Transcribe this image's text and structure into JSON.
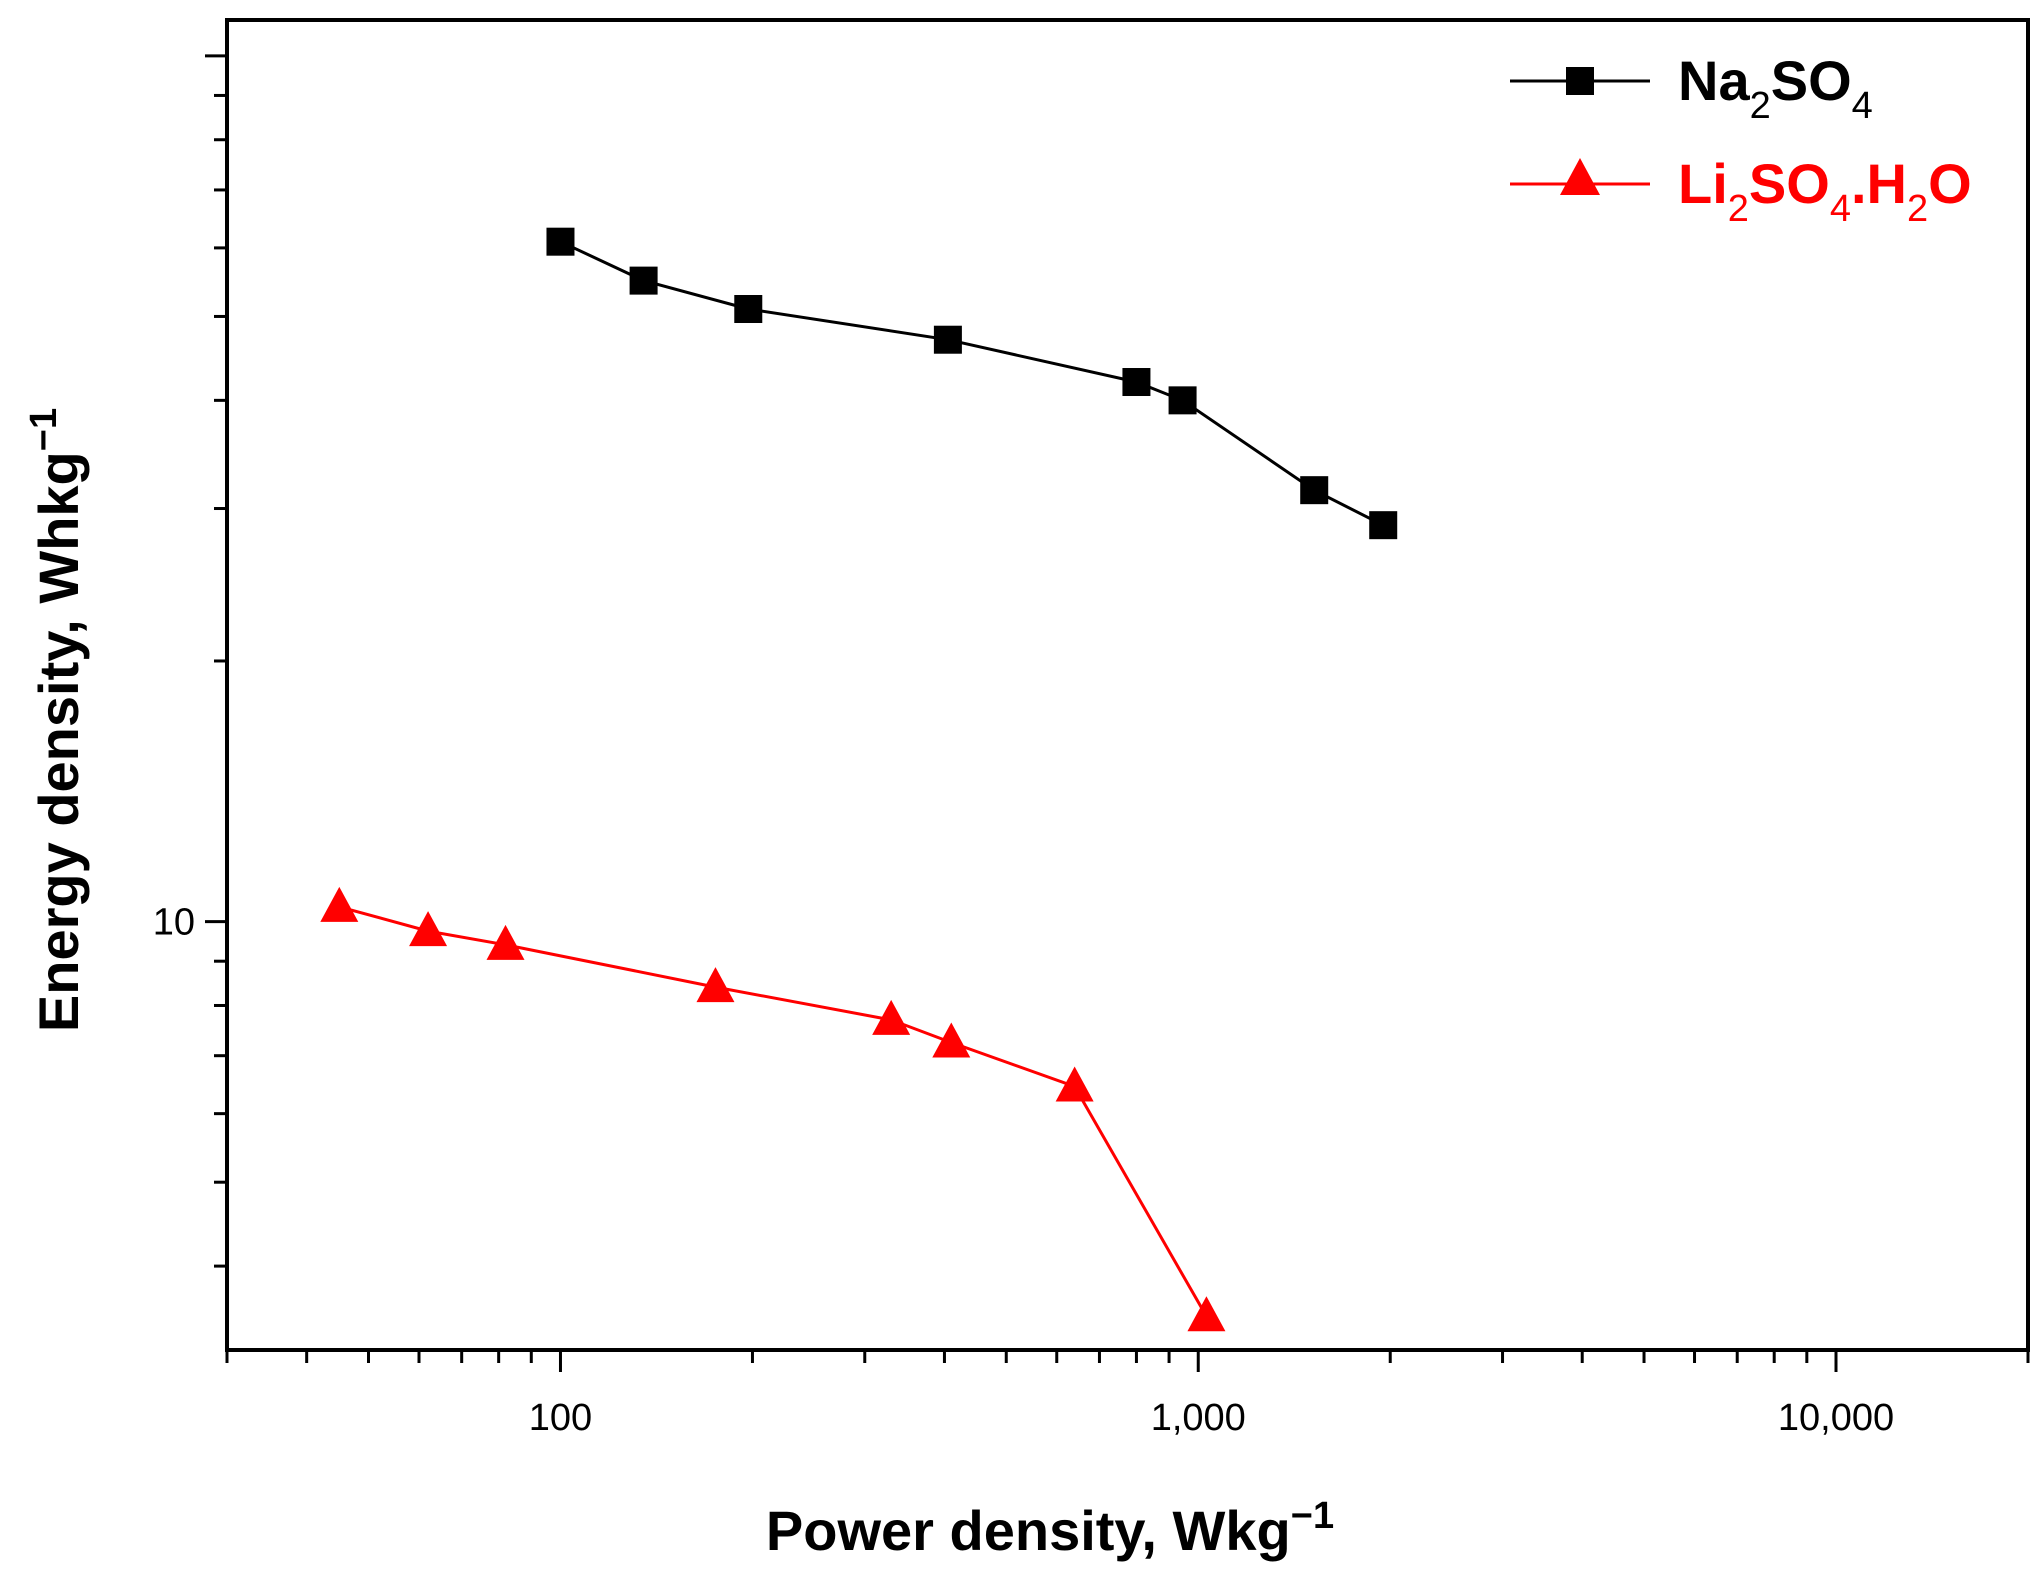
{
  "chart_data": {
    "type": "line",
    "xlabel": "Power density, Wkg",
    "xlabel_sup": "−1",
    "ylabel": "Energy density, Whkg",
    "ylabel_sup": "−1",
    "x_scale": "log",
    "y_scale": "log",
    "xlim": [
      30,
      20000
    ],
    "ylim": [
      3.2,
      110
    ],
    "x_tick_labels": [
      {
        "value": 100,
        "label": "100"
      },
      {
        "value": 1000,
        "label": "1,000"
      },
      {
        "value": 10000,
        "label": "10,000"
      }
    ],
    "y_tick_labels": [
      {
        "value": 10,
        "label": "10"
      }
    ],
    "grid": false,
    "legend_position": "top-right",
    "series": [
      {
        "name": "Na2SO4",
        "name_parts": {
          "a": "Na",
          "b": "2",
          "c": "SO",
          "d": "4"
        },
        "color": "#000000",
        "marker": "square",
        "points": [
          {
            "x": 100,
            "y": 61
          },
          {
            "x": 135,
            "y": 55
          },
          {
            "x": 197,
            "y": 51
          },
          {
            "x": 405,
            "y": 47
          },
          {
            "x": 800,
            "y": 42
          },
          {
            "x": 945,
            "y": 40
          },
          {
            "x": 1520,
            "y": 31.5
          },
          {
            "x": 1950,
            "y": 28.7
          }
        ]
      },
      {
        "name": "Li2SO4.H2O",
        "name_parts": {
          "a": "Li",
          "b": "2",
          "c": "SO",
          "d": "4",
          "e": ".H",
          "f": "2",
          "g": "O"
        },
        "color": "#ff0000",
        "marker": "triangle",
        "points": [
          {
            "x": 45,
            "y": 10.4
          },
          {
            "x": 62,
            "y": 9.75
          },
          {
            "x": 82,
            "y": 9.4
          },
          {
            "x": 175,
            "y": 8.4
          },
          {
            "x": 330,
            "y": 7.7
          },
          {
            "x": 410,
            "y": 7.25
          },
          {
            "x": 640,
            "y": 6.45
          },
          {
            "x": 1030,
            "y": 3.5
          }
        ]
      }
    ]
  }
}
